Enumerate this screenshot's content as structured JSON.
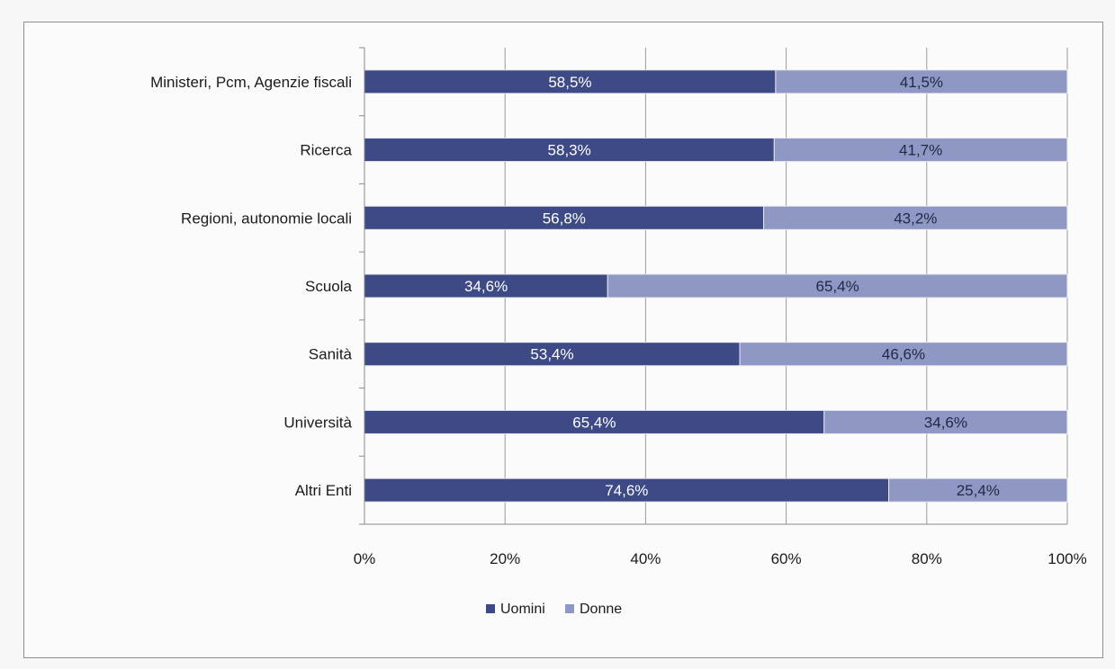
{
  "chart_data": {
    "type": "bar",
    "orientation": "horizontal",
    "stacked": true,
    "categories": [
      "Ministeri, Pcm, Agenzie fiscali",
      "Ricerca",
      "Regioni, autonomie locali",
      "Scuola",
      "Sanità",
      "Università",
      "Altri Enti"
    ],
    "series": [
      {
        "name": "Uomini",
        "color": "#3d4a86",
        "values": [
          58.5,
          58.3,
          56.8,
          34.6,
          53.4,
          65.4,
          74.6
        ],
        "labels": [
          "58,5%",
          "58,3%",
          "56,8%",
          "34,6%",
          "53,4%",
          "65,4%",
          "74,6%"
        ]
      },
      {
        "name": "Donne",
        "color": "#8f97c4",
        "values": [
          41.5,
          41.7,
          43.2,
          65.4,
          46.6,
          34.6,
          25.4
        ],
        "labels": [
          "41,5%",
          "41,7%",
          "43,2%",
          "65,4%",
          "46,6%",
          "34,6%",
          "25,4%"
        ]
      }
    ],
    "xlim": [
      0,
      100
    ],
    "xticks": [
      0,
      20,
      40,
      60,
      80,
      100
    ],
    "xtick_labels": [
      "0%",
      "20%",
      "40%",
      "60%",
      "80%",
      "100%"
    ],
    "grid": "vertical",
    "legend_position": "bottom"
  }
}
